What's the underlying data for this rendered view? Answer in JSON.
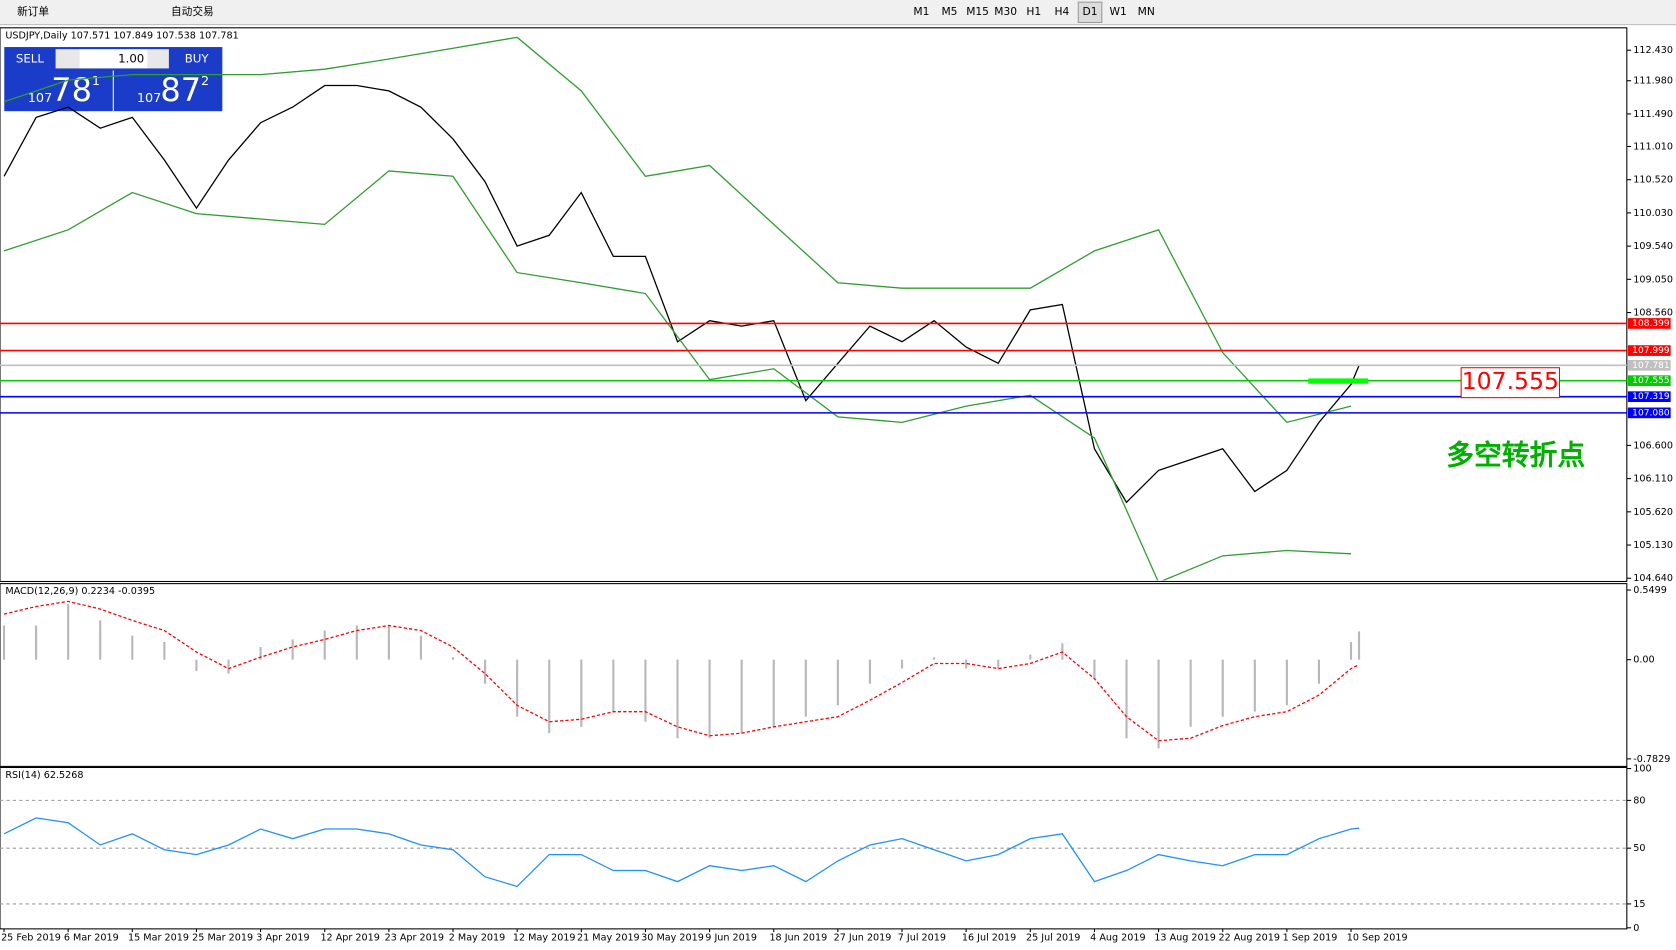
{
  "toolbar": {
    "buttons": [
      "新订单",
      "自动交易"
    ],
    "timeframes": [
      "M1",
      "M5",
      "M15",
      "M30",
      "H1",
      "H4",
      "D1",
      "W1",
      "MN"
    ],
    "active_timeframe": "D1"
  },
  "trade_panel": {
    "sell_label": "SELL",
    "buy_label": "BUY",
    "lot": "1.00",
    "sell_price": [
      "107",
      "78",
      "1"
    ],
    "buy_price": [
      "107",
      "87",
      "2"
    ]
  },
  "chart_data": [
    {
      "type": "line",
      "title": "USDJPY,Daily 107.571 107.849 107.538 107.781",
      "xlim": [
        -0.5,
        202.4
      ],
      "ylim": [
        104.608,
        112.745
      ],
      "xticks": [
        {
          "value": 0,
          "label": "25 Feb 2019"
        },
        {
          "value": 8,
          "label": "6 Mar 2019"
        },
        {
          "value": 16,
          "label": "15 Mar 2019"
        },
        {
          "value": 24,
          "label": "25 Mar 2019"
        },
        {
          "value": 32,
          "label": "3 Apr 2019"
        },
        {
          "value": 40,
          "label": "12 Apr 2019"
        },
        {
          "value": 48,
          "label": "23 Apr 2019"
        },
        {
          "value": 56,
          "label": "2 May 2019"
        },
        {
          "value": 64,
          "label": "12 May 2019"
        },
        {
          "value": 72,
          "label": "21 May 2019"
        },
        {
          "value": 80,
          "label": "30 May 2019"
        },
        {
          "value": 88,
          "label": "9 Jun 2019"
        },
        {
          "value": 96,
          "label": "18 Jun 2019"
        },
        {
          "value": 104,
          "label": "27 Jun 2019"
        },
        {
          "value": 112,
          "label": "7 Jul 2019"
        },
        {
          "value": 120,
          "label": "16 Jul 2019"
        },
        {
          "value": 128,
          "label": "25 Jul 2019"
        },
        {
          "value": 136,
          "label": "4 Aug 2019"
        },
        {
          "value": 144,
          "label": "13 Aug 2019"
        },
        {
          "value": 152,
          "label": "22 Aug 2019"
        },
        {
          "value": 160,
          "label": "1 Sep 2019"
        },
        {
          "value": 168,
          "label": "10 Sep 2019"
        }
      ],
      "yticks": [
        {
          "value": 112.43,
          "label": "112.430"
        },
        {
          "value": 111.98,
          "label": "111.980"
        },
        {
          "value": 111.49,
          "label": "111.490"
        },
        {
          "value": 111.01,
          "label": "111.010"
        },
        {
          "value": 110.52,
          "label": "110.520"
        },
        {
          "value": 110.03,
          "label": "110.030"
        },
        {
          "value": 109.54,
          "label": "109.540"
        },
        {
          "value": 109.05,
          "label": "109.050"
        },
        {
          "value": 108.56,
          "label": "108.560"
        },
        {
          "value": 106.6,
          "label": "106.600"
        },
        {
          "value": 106.11,
          "label": "106.110"
        },
        {
          "value": 105.62,
          "label": "105.620"
        },
        {
          "value": 105.13,
          "label": "105.130"
        },
        {
          "value": 104.64,
          "label": "104.640"
        }
      ],
      "series": [
        {
          "color": "#000000",
          "x": [
            0,
            4,
            8,
            12,
            16,
            20,
            24,
            28,
            32,
            36,
            40,
            44,
            48,
            52,
            56,
            60,
            64,
            68,
            72,
            76,
            80,
            84,
            88,
            92,
            96,
            100,
            104,
            108,
            112,
            116,
            120,
            124,
            128,
            132,
            136,
            140,
            144,
            148,
            152,
            156,
            160,
            164,
            168,
            169
          ],
          "values": [
            110.57,
            111.44,
            111.59,
            111.28,
            111.44,
            110.81,
            110.1,
            110.81,
            111.36,
            111.59,
            111.91,
            111.91,
            111.83,
            111.59,
            111.12,
            110.49,
            109.54,
            109.7,
            110.33,
            109.39,
            109.39,
            108.13,
            108.44,
            108.36,
            108.44,
            107.26,
            107.81,
            108.36,
            108.13,
            108.44,
            108.05,
            107.81,
            108.6,
            108.68,
            106.55,
            105.76,
            106.23,
            106.39,
            106.55,
            105.92,
            106.23,
            106.94,
            107.5,
            107.781
          ]
        },
        {
          "color": "#2e9e2e",
          "x": [
            0,
            8,
            16,
            24,
            32,
            40,
            48,
            56,
            64,
            72,
            80,
            88,
            96,
            104,
            112,
            120,
            128,
            136,
            144,
            152,
            160,
            168
          ],
          "values": [
            111.67,
            111.99,
            112.07,
            112.07,
            112.07,
            112.15,
            112.3,
            112.46,
            112.62,
            111.83,
            110.57,
            110.73,
            109.86,
            109.0,
            108.92,
            108.92,
            108.92,
            109.47,
            109.78,
            107.97,
            106.94,
            107.18
          ]
        },
        {
          "color": "#2e9e2e",
          "x": [
            0,
            8,
            16,
            24,
            32,
            40,
            48,
            56,
            64,
            72,
            80,
            88,
            96,
            104,
            112,
            120,
            128,
            136,
            144,
            152,
            160,
            168
          ],
          "values": [
            109.47,
            109.78,
            110.33,
            110.02,
            109.94,
            109.86,
            110.65,
            110.57,
            109.15,
            109.0,
            108.84,
            107.57,
            107.73,
            107.02,
            106.94,
            107.18,
            107.34,
            106.71,
            104.58,
            104.97,
            105.05,
            105.0
          ]
        }
      ],
      "hlines": [
        {
          "value": 108.399,
          "label": "108.399",
          "color": "#ff0000"
        },
        {
          "value": 107.999,
          "label": "107.999",
          "color": "#ff0000"
        },
        {
          "value": 107.781,
          "label": "107.781",
          "color": "#c0c0c0"
        },
        {
          "value": 107.555,
          "label": "107.555",
          "color": "#00cc00"
        },
        {
          "value": 107.319,
          "label": "107.319",
          "color": "#0000ff"
        },
        {
          "value": 107.08,
          "label": "107.080",
          "color": "#0000ff"
        }
      ],
      "annotations": [
        "107.555",
        "多空转折点"
      ]
    },
    {
      "type": "bar",
      "title": "MACD(12,26,9) 0.2234 -0.0395",
      "xlim": [
        -0.5,
        202.4
      ],
      "ylim": [
        -0.834,
        0.592
      ],
      "yticks": [
        0.5499,
        {
          "value": 0,
          "label": "0.00"
        },
        -0.7829
      ],
      "x": [
        0,
        4,
        8,
        12,
        16,
        20,
        24,
        28,
        32,
        36,
        40,
        44,
        48,
        52,
        56,
        60,
        64,
        68,
        72,
        76,
        80,
        84,
        88,
        92,
        96,
        100,
        104,
        108,
        112,
        116,
        120,
        124,
        128,
        132,
        136,
        140,
        144,
        148,
        152,
        156,
        160,
        164,
        168,
        169
      ],
      "series": [
        {
          "color": "#b8b8b8",
          "values": [
            0.27,
            0.27,
            0.44,
            0.31,
            0.19,
            0.14,
            -0.09,
            -0.11,
            0.1,
            0.16,
            0.23,
            0.27,
            0.27,
            0.19,
            0.02,
            -0.19,
            -0.45,
            -0.58,
            -0.53,
            -0.41,
            -0.49,
            -0.62,
            -0.62,
            -0.58,
            -0.53,
            -0.45,
            -0.36,
            -0.19,
            -0.07,
            0.02,
            -0.07,
            -0.07,
            0.04,
            0.13,
            -0.15,
            -0.62,
            -0.7,
            -0.53,
            -0.45,
            -0.41,
            -0.36,
            -0.19,
            0.14,
            0.2234
          ]
        },
        {
          "type": "line",
          "color": "#ff0000",
          "values": [
            0.36,
            0.42,
            0.46,
            0.4,
            0.31,
            0.23,
            0.06,
            -0.07,
            0.02,
            0.1,
            0.16,
            0.23,
            0.27,
            0.23,
            0.1,
            -0.11,
            -0.36,
            -0.49,
            -0.47,
            -0.41,
            -0.41,
            -0.53,
            -0.6,
            -0.58,
            -0.53,
            -0.49,
            -0.45,
            -0.32,
            -0.18,
            -0.03,
            -0.03,
            -0.07,
            -0.03,
            0.06,
            -0.15,
            -0.45,
            -0.64,
            -0.62,
            -0.52,
            -0.45,
            -0.41,
            -0.28,
            -0.07,
            -0.0395
          ]
        }
      ]
    },
    {
      "type": "line",
      "title": "RSI(14) 62.5268",
      "xlim": [
        -0.5,
        202.4
      ],
      "ylim": [
        0,
        100
      ],
      "yticks": [
        100,
        80,
        50,
        15,
        0
      ],
      "series": [
        {
          "color": "#1e90ff",
          "x": [
            0,
            4,
            8,
            12,
            16,
            20,
            24,
            28,
            32,
            36,
            40,
            44,
            48,
            52,
            56,
            60,
            64,
            68,
            72,
            76,
            80,
            84,
            88,
            92,
            96,
            100,
            104,
            108,
            112,
            116,
            120,
            124,
            128,
            132,
            136,
            140,
            144,
            148,
            152,
            156,
            160,
            164,
            168,
            169
          ],
          "values": [
            59,
            69,
            66,
            52,
            59,
            49,
            46,
            52,
            62,
            56,
            62,
            62,
            59,
            52,
            49,
            32,
            26,
            46,
            46,
            36,
            36,
            29,
            39,
            36,
            39,
            29,
            42,
            52,
            56,
            49,
            42,
            46,
            56,
            59,
            29,
            36,
            46,
            42,
            39,
            46,
            46,
            56,
            62,
            62.5268
          ]
        }
      ]
    }
  ]
}
